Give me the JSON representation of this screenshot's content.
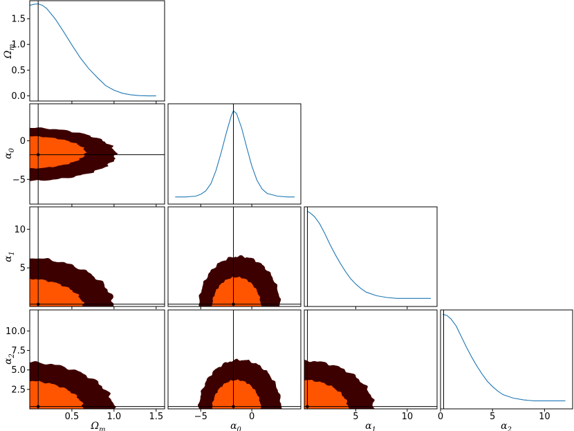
{
  "colors": {
    "marginal_line": "#1f77b4",
    "truth_line": "#000000",
    "inner_region": "#ff5500",
    "outer_region": "#3d0000",
    "frame": "#000000"
  },
  "axis_titles": {
    "omega_m": "Ω",
    "omega_m_sub": "m",
    "alpha": "α",
    "alpha0_sub": "0",
    "alpha1_sub": "1",
    "alpha2_sub": "2"
  },
  "chart_data": {
    "type": "corner",
    "parameters": [
      "Ω_m",
      "α_0",
      "α_1",
      "α_2"
    ],
    "truth": {
      "omega_m": 0.1,
      "alpha0": -1.8,
      "alpha1": 0.3,
      "alpha2": 0.3
    },
    "ranges": {
      "omega_m": [
        0.0,
        1.6
      ],
      "alpha0": [
        -8.2,
        4.8
      ],
      "alpha1": [
        0.0,
        12.9
      ],
      "alpha2": [
        0.0,
        12.7
      ]
    },
    "ticks": {
      "omega_m_x": [
        "0.5",
        "1.0",
        "1.5"
      ],
      "omega_m_x_values": [
        0.5,
        1.0,
        1.5
      ],
      "alpha0_x": [
        "−5",
        "0"
      ],
      "alpha0_x_values": [
        -5,
        0
      ],
      "alpha1_x": [
        "5",
        "10"
      ],
      "alpha1_x_values": [
        5,
        10
      ],
      "alpha2_x": [
        "0",
        "5",
        "10"
      ],
      "alpha2_x_values": [
        0,
        5,
        10
      ],
      "diag_omega_y": [
        "0.0",
        "0.5",
        "1.0",
        "1.5"
      ],
      "diag_omega_y_values": [
        0.0,
        0.5,
        1.0,
        1.5
      ],
      "alpha0_y": [
        "0",
        "−5"
      ],
      "alpha0_y_values": [
        0,
        -5
      ],
      "alpha1_y": [
        "5",
        "10"
      ],
      "alpha1_y_values": [
        5,
        10
      ],
      "alpha2_y": [
        "2.5",
        "5.0",
        "7.5",
        "10.0"
      ],
      "alpha2_y_values": [
        2.5,
        5.0,
        7.5,
        10.0
      ]
    },
    "marginals": {
      "omega_m": {
        "ylim": [
          -0.1,
          1.85
        ],
        "x": [
          0.0,
          0.05,
          0.1,
          0.15,
          0.2,
          0.3,
          0.4,
          0.5,
          0.6,
          0.7,
          0.8,
          0.9,
          1.0,
          1.1,
          1.2,
          1.3,
          1.4,
          1.5
        ],
        "y": [
          1.76,
          1.78,
          1.79,
          1.76,
          1.7,
          1.5,
          1.25,
          0.99,
          0.74,
          0.53,
          0.36,
          0.2,
          0.11,
          0.05,
          0.02,
          0.005,
          0.0,
          0.0
        ]
      },
      "alpha0": {
        "ylim": [
          -0.08,
          1.05
        ],
        "x": [
          -7.5,
          -6.5,
          -5.5,
          -5.0,
          -4.5,
          -4.0,
          -3.5,
          -3.0,
          -2.5,
          -2.0,
          -1.8,
          -1.5,
          -1.0,
          -0.5,
          0.0,
          0.5,
          1.0,
          1.5,
          2.5,
          3.5,
          4.2
        ],
        "y": [
          0.0,
          0.0,
          0.01,
          0.03,
          0.07,
          0.15,
          0.3,
          0.5,
          0.72,
          0.92,
          0.97,
          0.94,
          0.78,
          0.56,
          0.35,
          0.19,
          0.09,
          0.04,
          0.01,
          0.0,
          0.0
        ]
      },
      "alpha1": {
        "ylim": [
          -0.06,
          1.05
        ],
        "x": [
          0.3,
          0.6,
          1.0,
          1.5,
          2.0,
          2.5,
          3.0,
          3.5,
          4.0,
          4.5,
          5.0,
          5.5,
          6.0,
          7.0,
          8.0,
          9.0,
          10.0,
          11.0,
          12.3
        ],
        "y": [
          1.0,
          0.98,
          0.94,
          0.86,
          0.75,
          0.63,
          0.52,
          0.42,
          0.33,
          0.25,
          0.19,
          0.14,
          0.1,
          0.06,
          0.04,
          0.03,
          0.03,
          0.03,
          0.03
        ]
      },
      "alpha2": {
        "ylim": [
          -0.06,
          1.05
        ],
        "x": [
          0.2,
          0.6,
          1.0,
          1.5,
          2.0,
          2.5,
          3.0,
          3.5,
          4.0,
          4.5,
          5.0,
          5.5,
          6.0,
          7.0,
          8.0,
          9.0,
          10.0,
          11.0,
          12.0
        ],
        "y": [
          1.0,
          0.99,
          0.95,
          0.87,
          0.75,
          0.63,
          0.52,
          0.42,
          0.33,
          0.25,
          0.19,
          0.14,
          0.1,
          0.06,
          0.04,
          0.03,
          0.03,
          0.03,
          0.03
        ]
      }
    },
    "contours_2d": [
      {
        "name": "alpha0-vs-omega_m",
        "x": "omega_m",
        "y": "alpha0",
        "outer": {
          "xmax": 1.02,
          "ylow": -5.2,
          "yhigh": 1.7
        },
        "inner": {
          "xmax": 0.66,
          "ylow": -3.6,
          "yhigh": 0.6
        }
      },
      {
        "name": "alpha1-vs-omega_m",
        "x": "omega_m",
        "y": "alpha1",
        "outer": {
          "xmax": 1.0,
          "ymax": 6.3
        },
        "inner": {
          "xmax": 0.64,
          "ymax": 3.6
        }
      },
      {
        "name": "alpha1-vs-alpha0",
        "x": "alpha0",
        "y": "alpha1",
        "outer": {
          "xlow": -5.2,
          "xhigh": 2.8,
          "ymax": 6.5
        },
        "inner": {
          "xlow": -3.9,
          "xhigh": 0.9,
          "ymax": 3.8
        }
      },
      {
        "name": "alpha2-vs-omega_m",
        "x": "omega_m",
        "y": "alpha2",
        "outer": {
          "xmax": 1.0,
          "ymax": 6.0
        },
        "inner": {
          "xmax": 0.64,
          "ymax": 3.6
        }
      },
      {
        "name": "alpha2-vs-alpha0",
        "x": "alpha0",
        "y": "alpha2",
        "outer": {
          "xlow": -5.2,
          "xhigh": 2.9,
          "ymax": 6.3
        },
        "inner": {
          "xlow": -3.9,
          "xhigh": 0.9,
          "ymax": 3.7
        }
      },
      {
        "name": "alpha2-vs-alpha1",
        "x": "alpha1",
        "y": "alpha2",
        "outer": {
          "xmax": 6.8,
          "ymax": 6.2
        },
        "inner": {
          "xmax": 4.3,
          "ymax": 3.7
        }
      }
    ]
  }
}
